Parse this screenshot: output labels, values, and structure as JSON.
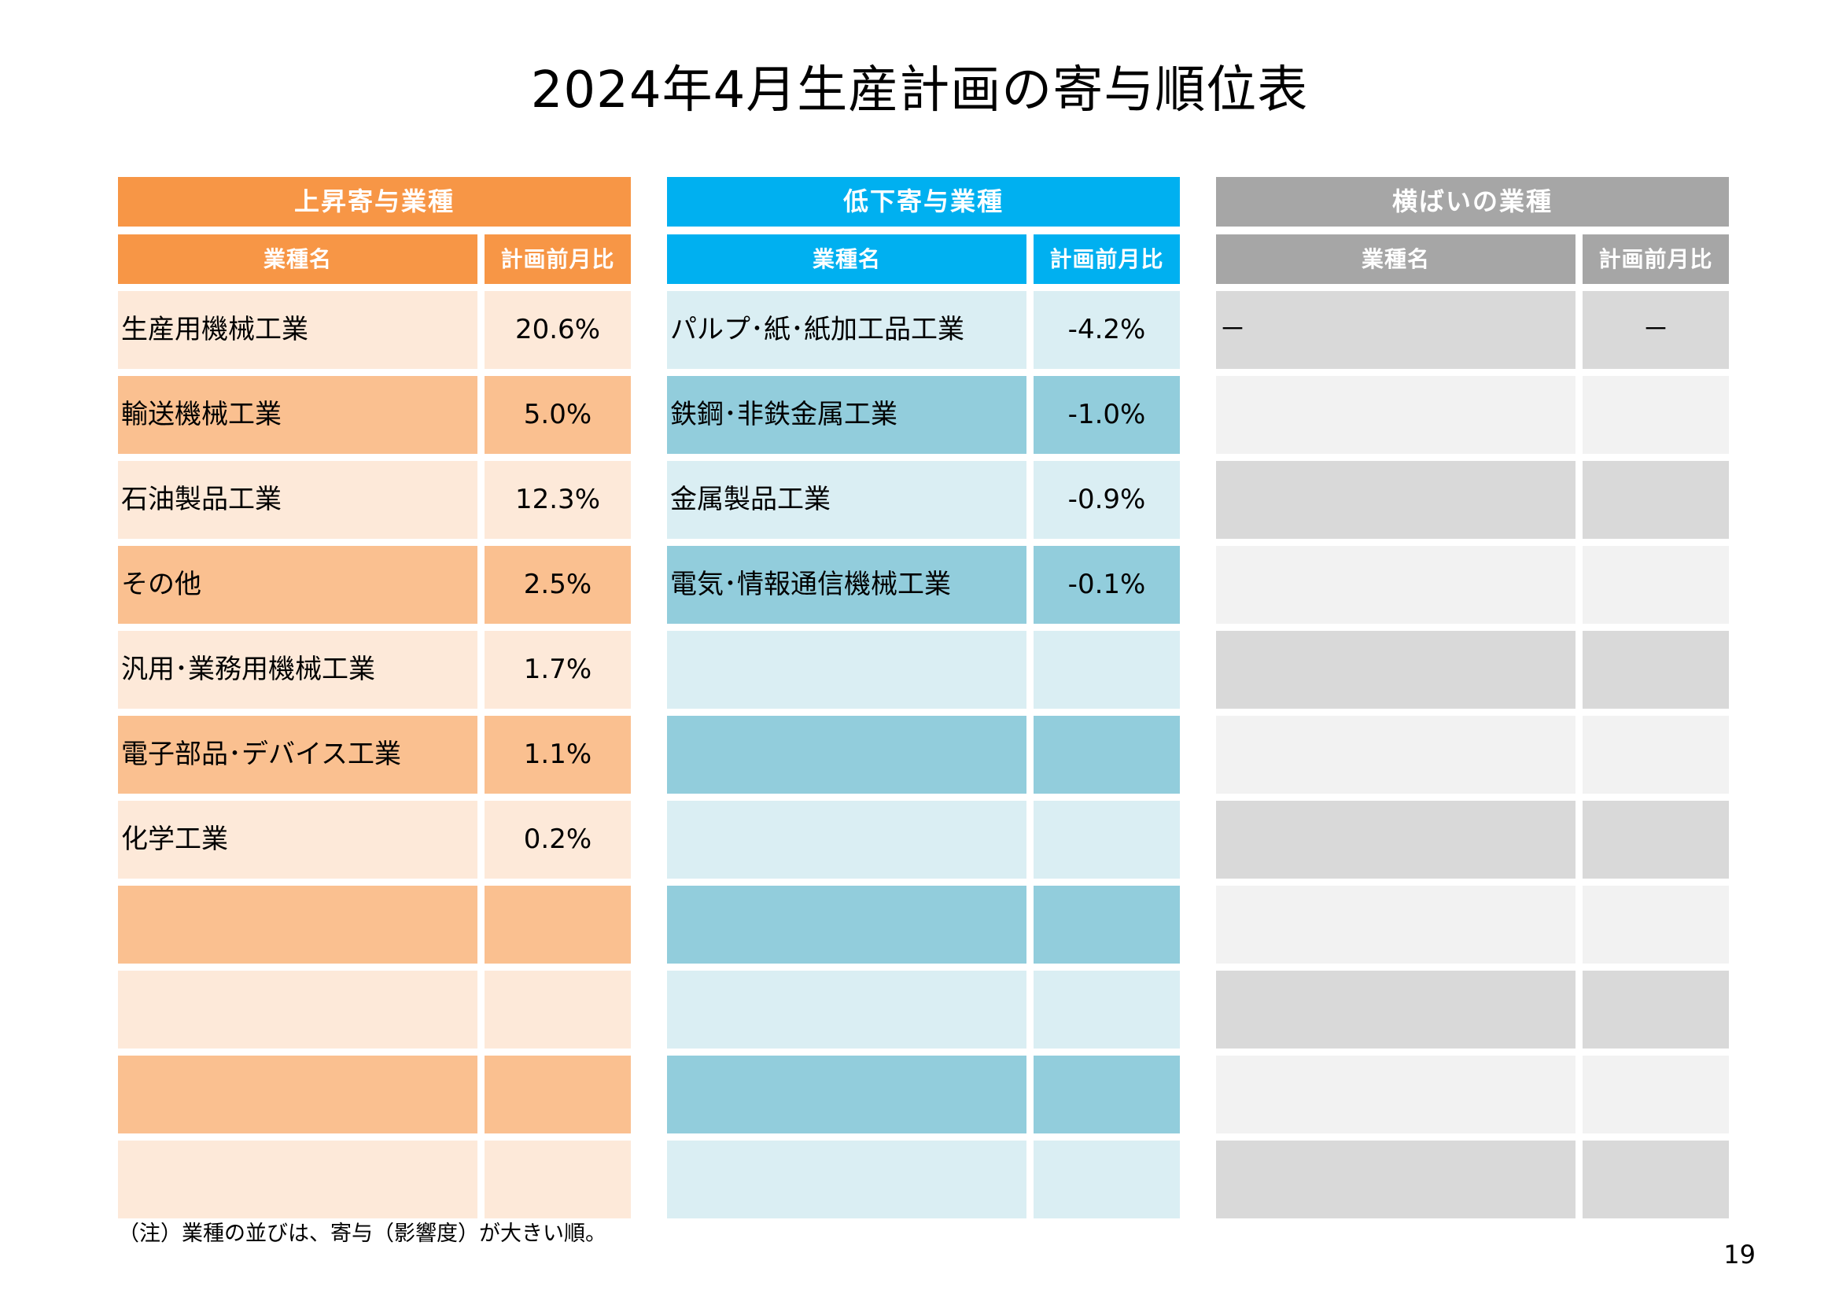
{
  "title": "2024年4月生産計画の寄与順位表",
  "up": {
    "header": "上昇寄与業種",
    "col_name": "業種名",
    "col_value": "計画前月比",
    "rows": [
      {
        "name": "生産用機械工業",
        "value": "20.6%"
      },
      {
        "name": "輸送機械工業",
        "value": "5.0%"
      },
      {
        "name": "石油製品工業",
        "value": "12.3%"
      },
      {
        "name": "その他",
        "value": "2.5%"
      },
      {
        "name": "汎用･業務用機械工業",
        "value": "1.7%"
      },
      {
        "name": "電子部品･デバイス工業",
        "value": "1.1%"
      },
      {
        "name": "化学工業",
        "value": "0.2%"
      },
      {
        "name": "",
        "value": ""
      },
      {
        "name": "",
        "value": ""
      },
      {
        "name": "",
        "value": ""
      },
      {
        "name": "",
        "value": ""
      }
    ]
  },
  "down": {
    "header": "低下寄与業種",
    "col_name": "業種名",
    "col_value": "計画前月比",
    "rows": [
      {
        "name": "パルプ･紙･紙加工品工業",
        "value": "-4.2%"
      },
      {
        "name": "鉄鋼･非鉄金属工業",
        "value": "-1.0%"
      },
      {
        "name": "金属製品工業",
        "value": "-0.9%"
      },
      {
        "name": "電気･情報通信機械工業",
        "value": "-0.1%"
      },
      {
        "name": "",
        "value": ""
      },
      {
        "name": "",
        "value": ""
      },
      {
        "name": "",
        "value": ""
      },
      {
        "name": "",
        "value": ""
      },
      {
        "name": "",
        "value": ""
      },
      {
        "name": "",
        "value": ""
      },
      {
        "name": "",
        "value": ""
      }
    ]
  },
  "flat": {
    "header": "横ばいの業種",
    "col_name": "業種名",
    "col_value": "計画前月比",
    "rows": [
      {
        "name": "－",
        "value": "－"
      },
      {
        "name": "",
        "value": ""
      },
      {
        "name": "",
        "value": ""
      },
      {
        "name": "",
        "value": ""
      },
      {
        "name": "",
        "value": ""
      },
      {
        "name": "",
        "value": ""
      },
      {
        "name": "",
        "value": ""
      },
      {
        "name": "",
        "value": ""
      },
      {
        "name": "",
        "value": ""
      },
      {
        "name": "",
        "value": ""
      },
      {
        "name": "",
        "value": ""
      }
    ]
  },
  "note": "（注）業種の並びは、寄与（影響度）が大きい順。",
  "page_number": "19"
}
